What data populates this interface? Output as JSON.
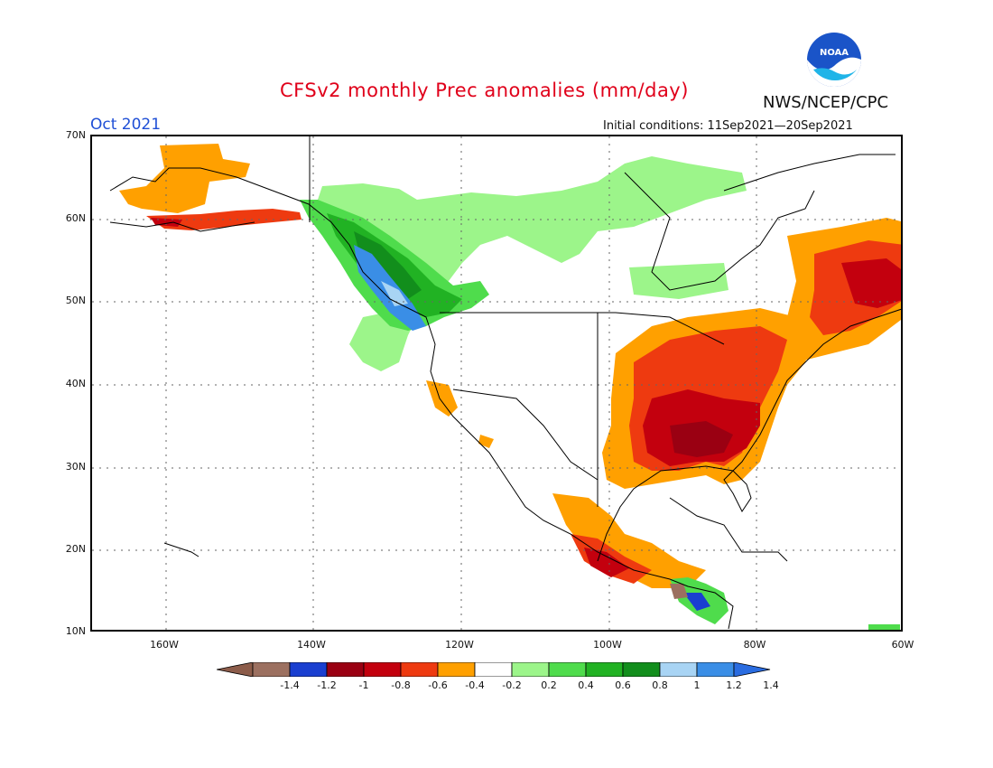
{
  "header": {
    "title": "CFSv2 monthly Prec anomalies (mm/day)",
    "agency": "NWS/NCEP/CPC",
    "logo_text": "NOAA",
    "month": "Oct 2021",
    "init_conditions": "Initial conditions: 11Sep2021—20Sep2021"
  },
  "axes": {
    "lat_labels": [
      "70N",
      "60N",
      "50N",
      "40N",
      "30N",
      "20N",
      "10N"
    ],
    "lon_labels": [
      "160W",
      "140W",
      "120W",
      "100W",
      "80W",
      "60W"
    ],
    "lat_range": [
      10,
      70
    ],
    "lon_range": [
      -170,
      -60
    ]
  },
  "colorbar": {
    "labels": [
      "-1.4",
      "-1.2",
      "-1",
      "-0.8",
      "-0.6",
      "-0.4",
      "-0.2",
      "0.2",
      "0.4",
      "0.6",
      "0.8",
      "1",
      "1.2",
      "1.4"
    ],
    "colors": [
      "#8c5c4a",
      "#9c7060",
      "#1a3fd0",
      "#9a0012",
      "#c3000e",
      "#ee3a10",
      "#ffa000",
      "#ffffff",
      "#9cf58a",
      "#4fdc4c",
      "#21b223",
      "#128e1c",
      "#a8d4f4",
      "#3a8ee6",
      "#2a6ce0"
    ]
  },
  "map": {
    "description_regions": [
      {
        "name": "southeast-us",
        "level": "-0.8"
      },
      {
        "name": "northeast-canada",
        "level": "-0.6"
      },
      {
        "name": "pacific-northwest-coast",
        "level": "1.2"
      },
      {
        "name": "western-canada",
        "level": "0.4"
      }
    ]
  }
}
